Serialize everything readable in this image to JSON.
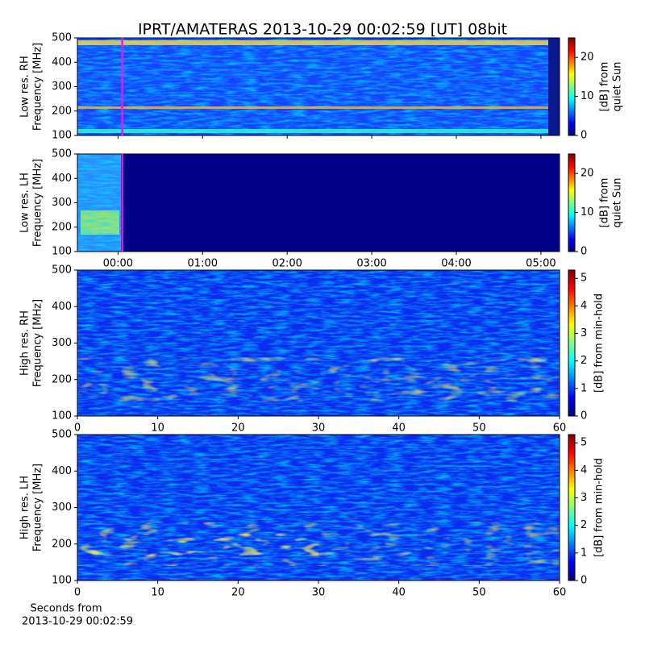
{
  "title": "IPRT/AMATERAS 2013-10-29 00:02:59 [UT]   08bit",
  "chart_data": [
    {
      "type": "spectrogram",
      "ylabel": [
        "Low res. RH",
        "Frequency [MHz]"
      ],
      "xlim": [
        -0.48,
        5.22
      ],
      "ylim": [
        100,
        500
      ],
      "yticks": [
        100,
        200,
        300,
        400,
        500
      ],
      "marker_x": 0.05,
      "marker_color": "#e020e0",
      "cbar_label": [
        "[dB] from",
        "quiet Sun"
      ],
      "cbar_lim": [
        0,
        25
      ],
      "cbar_ticks": [
        0,
        10,
        20
      ]
    },
    {
      "type": "spectrogram",
      "ylabel": [
        "Low res. LH",
        "Frequency [MHz]"
      ],
      "xlim": [
        -0.48,
        5.22
      ],
      "ylim": [
        100,
        500
      ],
      "yticks": [
        100,
        200,
        300,
        400,
        500
      ],
      "xticks": [
        {
          "value": 0,
          "label": "00:00"
        },
        {
          "value": 1,
          "label": "01:00"
        },
        {
          "value": 2,
          "label": "02:00"
        },
        {
          "value": 3,
          "label": "03:00"
        },
        {
          "value": 4,
          "label": "04:00"
        },
        {
          "value": 5,
          "label": "05:00"
        }
      ],
      "marker_x": 0.05,
      "marker_color": "#e020e0",
      "cbar_label": [
        "[dB] from",
        "quiet Sun"
      ],
      "cbar_lim": [
        0,
        25
      ],
      "cbar_ticks": [
        0,
        10,
        20
      ]
    },
    {
      "type": "spectrogram",
      "ylabel": [
        "High res. RH",
        "Frequency [MHz]"
      ],
      "xlim": [
        0,
        60
      ],
      "ylim": [
        100,
        500
      ],
      "yticks": [
        100,
        200,
        300,
        400,
        500
      ],
      "xticks": [
        0,
        10,
        20,
        30,
        40,
        50,
        60
      ],
      "cbar_label": [
        "[dB] from min-hold"
      ],
      "cbar_lim": [
        0,
        5.3
      ],
      "cbar_ticks": [
        0,
        1,
        2,
        3,
        4,
        5
      ]
    },
    {
      "type": "spectrogram",
      "ylabel": [
        "High res. LH",
        "Frequency [MHz]"
      ],
      "xlim": [
        0,
        60
      ],
      "ylim": [
        100,
        500
      ],
      "yticks": [
        100,
        200,
        300,
        400,
        500
      ],
      "xticks": [
        0,
        10,
        20,
        30,
        40,
        50,
        60
      ],
      "xlabel": [
        "Seconds from",
        "2013-10-29 00:02:59"
      ],
      "cbar_label": [
        "[dB] from min-hold"
      ],
      "cbar_lim": [
        0,
        5.3
      ],
      "cbar_ticks": [
        0,
        1,
        2,
        3,
        4,
        5
      ]
    }
  ]
}
